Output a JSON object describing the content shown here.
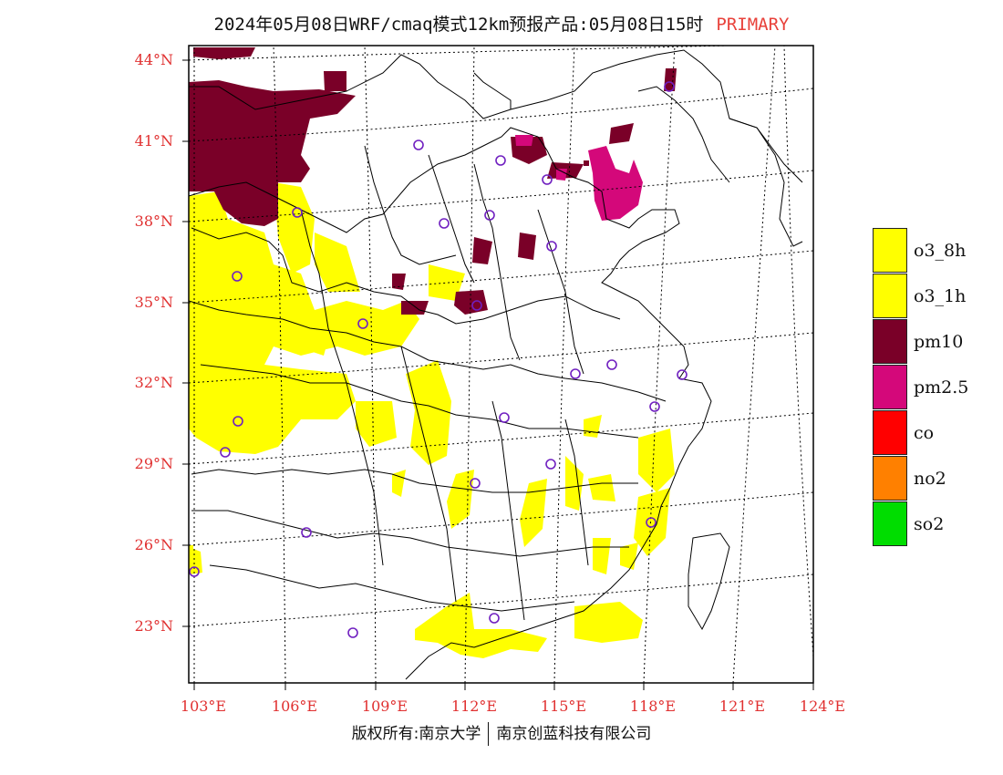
{
  "header": {
    "title": "2024年05月08日WRF/cmaq模式12km预报产品:05月08日15时",
    "tag": "PRIMARY"
  },
  "axes": {
    "latitude_labels": [
      "44°N",
      "41°N",
      "38°N",
      "35°N",
      "32°N",
      "29°N",
      "26°N",
      "23°N"
    ],
    "longitude_labels": [
      "103°E",
      "106°E",
      "109°E",
      "112°E",
      "115°E",
      "118°E",
      "121°E",
      "124°E"
    ]
  },
  "legend": [
    {
      "label": "o3_8h",
      "color": "#ffff00"
    },
    {
      "label": "o3_1h",
      "color": "#ffff00"
    },
    {
      "label": "pm10",
      "color": "#7a0028"
    },
    {
      "label": "pm2.5",
      "color": "#d4087a"
    },
    {
      "label": "co",
      "color": "#ff0000"
    },
    {
      "label": "no2",
      "color": "#ff8000"
    },
    {
      "label": "so2",
      "color": "#00dd00"
    }
  ],
  "footer": {
    "left": "版权所有:南京大学",
    "right": "南京创蓝科技有限公司"
  },
  "colors": {
    "accent": "#e8413a",
    "o3": "#ffff00",
    "pm10": "#7a0028",
    "pm25": "#d4087a",
    "station_marker": "#7020c0"
  }
}
